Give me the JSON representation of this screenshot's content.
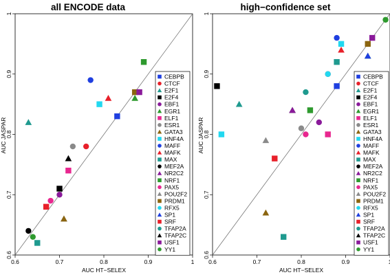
{
  "chart_data": [
    {
      "type": "scatter",
      "title": "all ENCODE data",
      "xlabel": "AUC HT−SELEX",
      "ylabel": "AUC JASPAR",
      "xlim": [
        0.6,
        1.0
      ],
      "ylim": [
        0.6,
        1.0
      ],
      "xticks": [
        "0.6",
        "0.7",
        "0.8",
        "0.9",
        "1"
      ],
      "yticks": [
        "0.6",
        "0.7",
        "0.8",
        "0.9",
        "1"
      ],
      "diagonal": "y = x",
      "legend_position": "right",
      "points": [
        {
          "tf": "E2F1",
          "x": 0.63,
          "y": 0.82
        },
        {
          "tf": "MAFF",
          "x": 0.77,
          "y": 0.89
        },
        {
          "tf": "NRF1",
          "x": 0.89,
          "y": 0.92
        },
        {
          "tf": "MAFK",
          "x": 0.81,
          "y": 0.86
        },
        {
          "tf": "EGR1",
          "x": 0.87,
          "y": 0.86
        },
        {
          "tf": "PRDM1",
          "x": 0.87,
          "y": 0.87
        },
        {
          "tf": "USF1",
          "x": 0.88,
          "y": 0.87
        },
        {
          "tf": "HNF4A",
          "x": 0.79,
          "y": 0.85
        },
        {
          "tf": "CEBPB",
          "x": 0.83,
          "y": 0.83
        },
        {
          "tf": "ESR1",
          "x": 0.73,
          "y": 0.78
        },
        {
          "tf": "CTCF",
          "x": 0.76,
          "y": 0.78
        },
        {
          "tf": "TFAP2C",
          "x": 0.72,
          "y": 0.76
        },
        {
          "tf": "ELF1",
          "x": 0.72,
          "y": 0.74
        },
        {
          "tf": "E2F4",
          "x": 0.7,
          "y": 0.71
        },
        {
          "tf": "EBF1",
          "x": 0.7,
          "y": 0.7
        },
        {
          "tf": "PAX5",
          "x": 0.68,
          "y": 0.69
        },
        {
          "tf": "SRF",
          "x": 0.67,
          "y": 0.68
        },
        {
          "tf": "POU2F2",
          "x": 0.71,
          "y": 0.66
        },
        {
          "tf": "GATA3",
          "x": 0.71,
          "y": 0.66
        },
        {
          "tf": "MEF2A",
          "x": 0.63,
          "y": 0.64
        },
        {
          "tf": "YY1",
          "x": 0.64,
          "y": 0.63
        },
        {
          "tf": "MAX",
          "x": 0.65,
          "y": 0.62
        }
      ]
    },
    {
      "type": "scatter",
      "title": "high−confidence set",
      "xlabel": "AUC HT−SELEX",
      "ylabel": "AUC JASPAR",
      "xlim": [
        0.6,
        1.0
      ],
      "ylim": [
        0.6,
        1.0
      ],
      "xticks": [
        "0.6",
        "0.7",
        "0.8",
        "0.9",
        "1"
      ],
      "yticks": [
        "0.6",
        "0.7",
        "0.8",
        "0.9",
        "1"
      ],
      "diagonal": "y = x",
      "legend_position": "right",
      "points": [
        {
          "tf": "YY1",
          "x": 0.99,
          "y": 0.99
        },
        {
          "tf": "MAFF",
          "x": 0.88,
          "y": 0.96
        },
        {
          "tf": "USF1",
          "x": 0.96,
          "y": 0.96
        },
        {
          "tf": "HNF4A",
          "x": 0.89,
          "y": 0.95
        },
        {
          "tf": "PRDM1",
          "x": 0.95,
          "y": 0.95
        },
        {
          "tf": "MAFK",
          "x": 0.89,
          "y": 0.94
        },
        {
          "tf": "EGR1",
          "x": 0.95,
          "y": 0.93
        },
        {
          "tf": "SP1",
          "x": 0.95,
          "y": 0.93
        },
        {
          "tf": "E2F4",
          "x": 0.61,
          "y": 0.88
        },
        {
          "tf": "CTCF",
          "x": 0.86,
          "y": 0.9
        },
        {
          "tf": "RFX5",
          "x": 0.86,
          "y": 0.9
        },
        {
          "tf": "MAX",
          "x": 0.88,
          "y": 0.92
        },
        {
          "tf": "CEBPB",
          "x": 0.88,
          "y": 0.88
        },
        {
          "tf": "TFAP2A",
          "x": 0.81,
          "y": 0.87
        },
        {
          "tf": "E2F1",
          "x": 0.66,
          "y": 0.85
        },
        {
          "tf": "TFAP2C",
          "x": 0.78,
          "y": 0.84
        },
        {
          "tf": "NR2C2",
          "x": 0.78,
          "y": 0.84
        },
        {
          "tf": "NRF1",
          "x": 0.82,
          "y": 0.84
        },
        {
          "tf": "EBF1",
          "x": 0.84,
          "y": 0.82
        },
        {
          "tf": "ESR1",
          "x": 0.8,
          "y": 0.81
        },
        {
          "tf": "HNF4A",
          "x": 0.62,
          "y": 0.8
        },
        {
          "tf": "PAX5",
          "x": 0.81,
          "y": 0.8
        },
        {
          "tf": "ELF1",
          "x": 0.86,
          "y": 0.8
        },
        {
          "tf": "POU2F2",
          "x": 0.72,
          "y": 0.79
        },
        {
          "tf": "SRF",
          "x": 0.74,
          "y": 0.76
        },
        {
          "tf": "GATA3",
          "x": 0.72,
          "y": 0.67
        },
        {
          "tf": "MAX",
          "x": 0.76,
          "y": 0.63
        }
      ]
    }
  ],
  "legend": [
    {
      "label": "CEBPB",
      "shape": "square",
      "color": "#1f3fe0"
    },
    {
      "label": "CTCF",
      "shape": "circle",
      "color": "#e8202a"
    },
    {
      "label": "E2F1",
      "shape": "triangle",
      "color": "#1f9a8f"
    },
    {
      "label": "E2F4",
      "shape": "square",
      "color": "#000000"
    },
    {
      "label": "EBF1",
      "shape": "circle",
      "color": "#8a1a9a"
    },
    {
      "label": "EGR1",
      "shape": "triangle",
      "color": "#2e9a2e"
    },
    {
      "label": "ELF1",
      "shape": "square",
      "color": "#e8278f"
    },
    {
      "label": "ESR1",
      "shape": "circle",
      "color": "#8a8a8a"
    },
    {
      "label": "GATA3",
      "shape": "triangle",
      "color": "#8b6510"
    },
    {
      "label": "HNF4A",
      "shape": "square",
      "color": "#22d8f0"
    },
    {
      "label": "MAFF",
      "shape": "circle",
      "color": "#1f3fe0"
    },
    {
      "label": "MAFK",
      "shape": "triangle",
      "color": "#e8202a"
    },
    {
      "label": "MAX",
      "shape": "square",
      "color": "#1f9a8f"
    },
    {
      "label": "MEF2A",
      "shape": "circle",
      "color": "#000000"
    },
    {
      "label": "NR2C2",
      "shape": "triangle",
      "color": "#8a1a9a"
    },
    {
      "label": "NRF1",
      "shape": "square",
      "color": "#2e9a2e"
    },
    {
      "label": "PAX5",
      "shape": "circle",
      "color": "#e8278f"
    },
    {
      "label": "POU2F2",
      "shape": "triangle",
      "color": "#8a8a8a"
    },
    {
      "label": "PRDM1",
      "shape": "square",
      "color": "#8b6510"
    },
    {
      "label": "RFX5",
      "shape": "circle",
      "color": "#22d8f0"
    },
    {
      "label": "SP1",
      "shape": "triangle",
      "color": "#1f3fe0"
    },
    {
      "label": "SRF",
      "shape": "square",
      "color": "#e8202a"
    },
    {
      "label": "TFAP2A",
      "shape": "circle",
      "color": "#1f9a8f"
    },
    {
      "label": "TFAP2C",
      "shape": "triangle",
      "color": "#000000"
    },
    {
      "label": "USF1",
      "shape": "square",
      "color": "#8a1a9a"
    },
    {
      "label": "YY1",
      "shape": "circle",
      "color": "#2e9a2e"
    }
  ]
}
